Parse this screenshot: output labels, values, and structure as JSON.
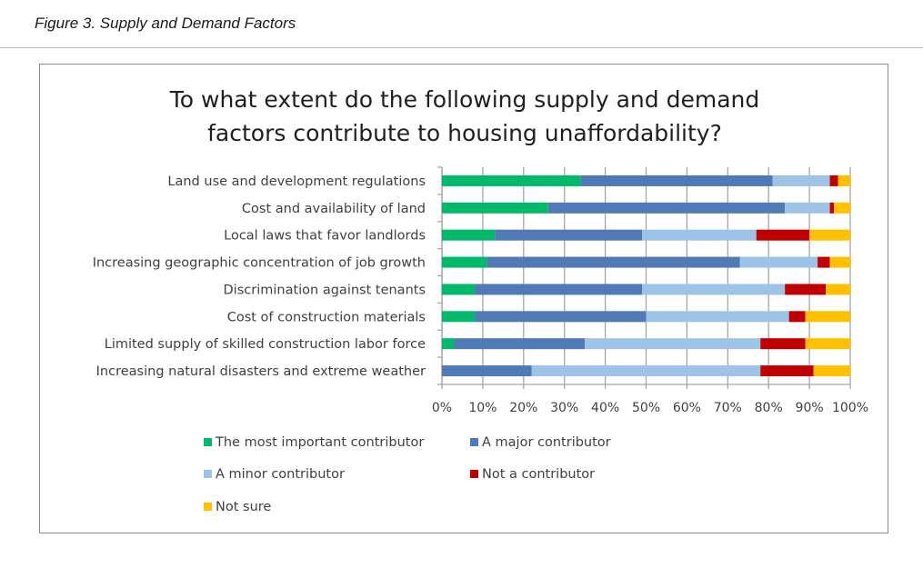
{
  "caption": "Figure 3. Supply and Demand Factors",
  "chart_data": {
    "type": "bar",
    "orientation": "horizontal",
    "stacked": true,
    "title_lines": [
      "To what extent do the following supply and demand",
      "factors contribute to housing unaffordability?"
    ],
    "categories": [
      "Land use and development regulations",
      "Cost and availability of land",
      "Local laws that favor landlords",
      "Increasing geographic concentration of job growth",
      "Discrimination against tenants",
      "Cost of construction materials",
      "Limited supply of skilled construction labor force",
      "Increasing natural disasters and extreme weather"
    ],
    "series": [
      {
        "name": "The most important contributor",
        "color": "#00b96b",
        "values": [
          34,
          26,
          13,
          11,
          8,
          8,
          3,
          0
        ]
      },
      {
        "name": "A major contributor",
        "color": "#4f7ab5",
        "values": [
          47,
          58,
          36,
          62,
          41,
          42,
          32,
          22
        ]
      },
      {
        "name": "A minor contributor",
        "color": "#9dc3e6",
        "values": [
          14,
          11,
          28,
          19,
          35,
          35,
          43,
          56
        ]
      },
      {
        "name": "Not a contributor",
        "color": "#c00000",
        "values": [
          2,
          1,
          13,
          3,
          10,
          4,
          11,
          13
        ]
      },
      {
        "name": "Not sure",
        "color": "#ffc000",
        "values": [
          3,
          4,
          10,
          5,
          6,
          11,
          11,
          9
        ]
      }
    ],
    "xlim": [
      0,
      100
    ],
    "xticks": [
      "0%",
      "10%",
      "20%",
      "30%",
      "40%",
      "50%",
      "60%",
      "70%",
      "80%",
      "90%",
      "100%"
    ],
    "xlabel": "",
    "ylabel": "",
    "grid": true,
    "legend_position": "bottom"
  }
}
